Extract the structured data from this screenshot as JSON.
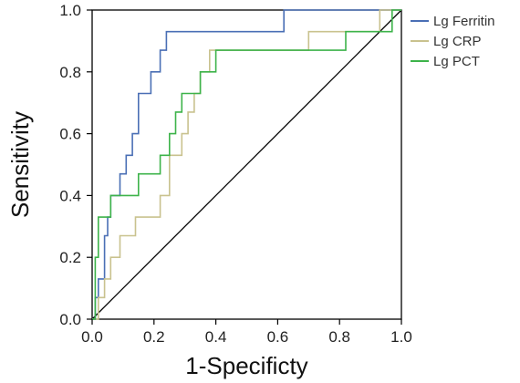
{
  "chart_data": {
    "type": "line",
    "title": "",
    "xlabel": "1-Specificty",
    "ylabel": "Sensitivity",
    "xlim": [
      0,
      1
    ],
    "ylim": [
      0,
      1
    ],
    "xticks": [
      "0.0",
      "0.2",
      "0.4",
      "0.6",
      "0.8",
      "1.0"
    ],
    "yticks": [
      "0.0",
      "0.2",
      "0.4",
      "0.6",
      "0.8",
      "1.0"
    ],
    "grid": false,
    "legend": "top-right outside plot",
    "reference_line": {
      "x": [
        0,
        1
      ],
      "y": [
        0,
        1
      ],
      "color": "#000000"
    },
    "series": [
      {
        "name": "Lg Ferritin",
        "color": "#4a6fb5",
        "x": [
          0,
          0.01,
          0.01,
          0.02,
          0.02,
          0.04,
          0.04,
          0.05,
          0.05,
          0.06,
          0.06,
          0.09,
          0.09,
          0.11,
          0.11,
          0.13,
          0.13,
          0.15,
          0.15,
          0.19,
          0.19,
          0.22,
          0.22,
          0.24,
          0.24,
          0.26,
          0.26,
          0.62,
          0.62,
          1.0
        ],
        "y": [
          0,
          0,
          0.07,
          0.07,
          0.13,
          0.13,
          0.27,
          0.27,
          0.33,
          0.33,
          0.4,
          0.4,
          0.47,
          0.47,
          0.53,
          0.53,
          0.6,
          0.6,
          0.73,
          0.73,
          0.8,
          0.8,
          0.87,
          0.87,
          0.93,
          0.93,
          0.93,
          0.93,
          1.0,
          1.0
        ]
      },
      {
        "name": "Lg CRP",
        "color": "#c9c28e",
        "x": [
          0,
          0.02,
          0.02,
          0.04,
          0.04,
          0.06,
          0.06,
          0.09,
          0.09,
          0.14,
          0.14,
          0.16,
          0.16,
          0.22,
          0.22,
          0.25,
          0.25,
          0.29,
          0.29,
          0.31,
          0.31,
          0.33,
          0.33,
          0.35,
          0.35,
          0.38,
          0.38,
          0.4,
          0.4,
          0.7,
          0.7,
          0.93,
          0.93,
          1.0
        ],
        "y": [
          0,
          0,
          0.07,
          0.07,
          0.13,
          0.13,
          0.2,
          0.2,
          0.27,
          0.27,
          0.33,
          0.33,
          0.33,
          0.33,
          0.4,
          0.4,
          0.53,
          0.53,
          0.6,
          0.6,
          0.67,
          0.67,
          0.73,
          0.73,
          0.8,
          0.8,
          0.87,
          0.87,
          0.87,
          0.87,
          0.93,
          0.93,
          1.0,
          1.0
        ]
      },
      {
        "name": "Lg PCT",
        "color": "#3db34a",
        "x": [
          0,
          0.01,
          0.01,
          0.02,
          0.02,
          0.06,
          0.06,
          0.15,
          0.15,
          0.22,
          0.22,
          0.25,
          0.25,
          0.27,
          0.27,
          0.29,
          0.29,
          0.31,
          0.31,
          0.35,
          0.35,
          0.4,
          0.4,
          0.48,
          0.48,
          0.82,
          0.82,
          0.97,
          0.97,
          1.0
        ],
        "y": [
          0,
          0,
          0.2,
          0.2,
          0.33,
          0.33,
          0.4,
          0.4,
          0.47,
          0.47,
          0.53,
          0.53,
          0.6,
          0.6,
          0.67,
          0.67,
          0.73,
          0.73,
          0.73,
          0.73,
          0.8,
          0.8,
          0.87,
          0.87,
          0.87,
          0.87,
          0.93,
          0.93,
          1.0,
          1.0
        ]
      }
    ]
  }
}
